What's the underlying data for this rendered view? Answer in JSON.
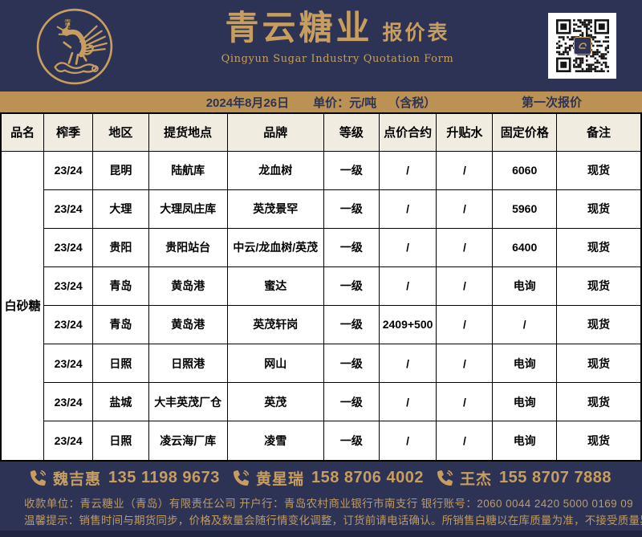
{
  "colors": {
    "navy": "#2d3355",
    "gold": "#c79e5f",
    "bar_gold": "#bc9254",
    "table_header_bg": "#f0ece0",
    "bottom_band": "#20263f"
  },
  "header": {
    "logo_seal_top": "青",
    "logo_seal_bottom": "云",
    "title": "青云糖业",
    "title_suffix": "报价表",
    "subtitle": "Qingyun Sugar Industry Quotation Form"
  },
  "info_bar": {
    "date": "2024年8月26日",
    "price_unit": "单价：元/吨",
    "tax_note": "（含税）",
    "round": "第一次报价"
  },
  "table": {
    "columns": [
      "品名",
      "榨季",
      "地区",
      "提货地点",
      "品牌",
      "等级",
      "点价合约",
      "升贴水",
      "固定价格",
      "备注"
    ],
    "product_name": "白砂糖",
    "rows": [
      [
        "23/24",
        "昆明",
        "陆航库",
        "龙血树",
        "一级",
        "/",
        "/",
        "6060",
        "现货"
      ],
      [
        "23/24",
        "大理",
        "大理凤庄库",
        "英茂景罕",
        "一级",
        "/",
        "/",
        "5960",
        "现货"
      ],
      [
        "23/24",
        "贵阳",
        "贵阳站台",
        "中云/龙血树/英茂",
        "一级",
        "/",
        "/",
        "6400",
        "现货"
      ],
      [
        "23/24",
        "青岛",
        "黄岛港",
        "蜜达",
        "一级",
        "/",
        "/",
        "电询",
        "现货"
      ],
      [
        "23/24",
        "青岛",
        "黄岛港",
        "英茂轩岗",
        "一级",
        "2409+500",
        "/",
        "/",
        "现货"
      ],
      [
        "23/24",
        "日照",
        "日照港",
        "网山",
        "一级",
        "/",
        "/",
        "电询",
        "现货"
      ],
      [
        "23/24",
        "盐城",
        "大丰英茂厂仓",
        "英茂",
        "一级",
        "/",
        "/",
        "电询",
        "现货"
      ],
      [
        "23/24",
        "日照",
        "凌云海厂库",
        "凌雪",
        "一级",
        "/",
        "/",
        "电询",
        "现货"
      ]
    ]
  },
  "contacts": [
    {
      "name": "魏吉惠",
      "phone": "135 1198 9673"
    },
    {
      "name": "黄星瑞",
      "phone": "158 8706 4002"
    },
    {
      "name": "王杰",
      "phone": "155 8707 7888"
    }
  ],
  "footer": {
    "account_line": "收款单位：青云糖业（青岛）有限责任公司  开户行：青岛农村商业银行市南支行  银行账号：2060 0044 2420 5000 0169 09",
    "tips_line": "温馨提示：销售时间与期货同步，价格及数量会随行情变化调整，订货前请电话确认。所销售白糖以在库质量为准，不接受质量异议！"
  }
}
